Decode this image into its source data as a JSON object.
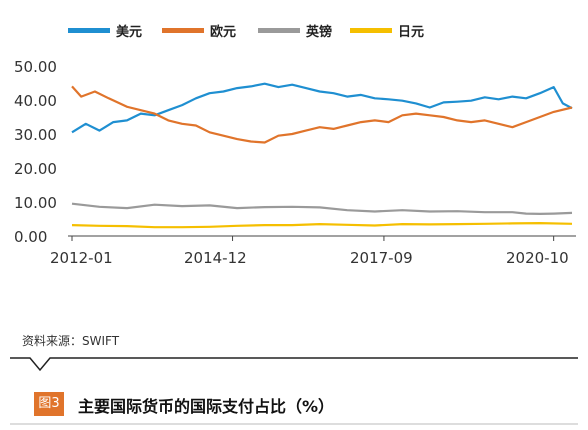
{
  "chart_data": {
    "type": "line",
    "title": "",
    "xlabel": "",
    "ylabel": "",
    "ylim": [
      0,
      50
    ],
    "yticks": [
      "0.00",
      "10.00",
      "20.00",
      "30.00",
      "40.00",
      "50.00"
    ],
    "xticks": [
      "2012-01",
      "2014-12",
      "2017-09",
      "2020-10"
    ],
    "x_range": [
      "2012-01",
      "2021-02"
    ],
    "legend_position": "top",
    "grid": false,
    "series": [
      {
        "name": "美元",
        "color": "#1f8fd1",
        "points": [
          [
            "2012-01",
            30.5
          ],
          [
            "2012-04",
            33
          ],
          [
            "2012-07",
            31
          ],
          [
            "2012-10",
            33.5
          ],
          [
            "2013-01",
            34
          ],
          [
            "2013-04",
            36
          ],
          [
            "2013-07",
            35.5
          ],
          [
            "2013-10",
            37
          ],
          [
            "2014-01",
            38.5
          ],
          [
            "2014-04",
            40.5
          ],
          [
            "2014-07",
            42
          ],
          [
            "2014-10",
            42.5
          ],
          [
            "2015-01",
            43.5
          ],
          [
            "2015-04",
            44
          ],
          [
            "2015-07",
            44.8
          ],
          [
            "2015-10",
            43.8
          ],
          [
            "2016-01",
            44.5
          ],
          [
            "2016-04",
            43.5
          ],
          [
            "2016-07",
            42.5
          ],
          [
            "2016-10",
            42
          ],
          [
            "2017-01",
            41
          ],
          [
            "2017-04",
            41.5
          ],
          [
            "2017-07",
            40.5
          ],
          [
            "2017-10",
            40.2
          ],
          [
            "2018-01",
            39.8
          ],
          [
            "2018-04",
            39
          ],
          [
            "2018-07",
            37.8
          ],
          [
            "2018-10",
            39.3
          ],
          [
            "2019-01",
            39.5
          ],
          [
            "2019-04",
            39.8
          ],
          [
            "2019-07",
            40.8
          ],
          [
            "2019-10",
            40.2
          ],
          [
            "2020-01",
            41
          ],
          [
            "2020-04",
            40.5
          ],
          [
            "2020-07",
            42
          ],
          [
            "2020-10",
            43.8
          ],
          [
            "2020-12",
            39
          ],
          [
            "2021-02",
            37.6
          ]
        ]
      },
      {
        "name": "欧元",
        "color": "#e0742b",
        "points": [
          [
            "2012-01",
            44
          ],
          [
            "2012-03",
            41
          ],
          [
            "2012-06",
            42.5
          ],
          [
            "2012-09",
            40.5
          ],
          [
            "2013-01",
            38
          ],
          [
            "2013-04",
            37
          ],
          [
            "2013-07",
            36
          ],
          [
            "2013-10",
            34
          ],
          [
            "2014-01",
            33
          ],
          [
            "2014-04",
            32.5
          ],
          [
            "2014-07",
            30.5
          ],
          [
            "2014-10",
            29.5
          ],
          [
            "2015-01",
            28.5
          ],
          [
            "2015-04",
            27.8
          ],
          [
            "2015-07",
            27.5
          ],
          [
            "2015-10",
            29.5
          ],
          [
            "2016-01",
            30
          ],
          [
            "2016-04",
            31
          ],
          [
            "2016-07",
            32
          ],
          [
            "2016-10",
            31.5
          ],
          [
            "2017-01",
            32.5
          ],
          [
            "2017-04",
            33.5
          ],
          [
            "2017-07",
            34
          ],
          [
            "2017-10",
            33.5
          ],
          [
            "2018-01",
            35.5
          ],
          [
            "2018-04",
            36
          ],
          [
            "2018-07",
            35.5
          ],
          [
            "2018-10",
            35
          ],
          [
            "2019-01",
            34
          ],
          [
            "2019-04",
            33.5
          ],
          [
            "2019-07",
            34
          ],
          [
            "2019-10",
            33
          ],
          [
            "2020-01",
            32
          ],
          [
            "2020-04",
            33.5
          ],
          [
            "2020-07",
            35
          ],
          [
            "2020-10",
            36.5
          ],
          [
            "2021-02",
            37.8
          ]
        ]
      },
      {
        "name": "英镑",
        "color": "#9a9a9a",
        "points": [
          [
            "2012-01",
            9.5
          ],
          [
            "2012-07",
            8.6
          ],
          [
            "2013-01",
            8.2
          ],
          [
            "2013-07",
            9.2
          ],
          [
            "2014-01",
            8.8
          ],
          [
            "2014-07",
            9.0
          ],
          [
            "2015-01",
            8.2
          ],
          [
            "2015-07",
            8.5
          ],
          [
            "2016-01",
            8.6
          ],
          [
            "2016-07",
            8.4
          ],
          [
            "2017-01",
            7.6
          ],
          [
            "2017-07",
            7.2
          ],
          [
            "2018-01",
            7.6
          ],
          [
            "2018-07",
            7.2
          ],
          [
            "2019-01",
            7.3
          ],
          [
            "2019-07",
            7.0
          ],
          [
            "2020-01",
            7.0
          ],
          [
            "2020-04",
            6.6
          ],
          [
            "2020-07",
            6.5
          ],
          [
            "2020-10",
            6.6
          ],
          [
            "2021-02",
            6.8
          ]
        ]
      },
      {
        "name": "日元",
        "color": "#f5bf00",
        "points": [
          [
            "2012-01",
            3.2
          ],
          [
            "2012-07",
            3.0
          ],
          [
            "2013-01",
            2.9
          ],
          [
            "2013-07",
            2.6
          ],
          [
            "2014-01",
            2.6
          ],
          [
            "2014-07",
            2.7
          ],
          [
            "2015-01",
            3.0
          ],
          [
            "2015-07",
            3.2
          ],
          [
            "2016-01",
            3.2
          ],
          [
            "2016-07",
            3.5
          ],
          [
            "2017-01",
            3.3
          ],
          [
            "2017-07",
            3.1
          ],
          [
            "2018-01",
            3.5
          ],
          [
            "2018-07",
            3.4
          ],
          [
            "2019-01",
            3.5
          ],
          [
            "2019-07",
            3.6
          ],
          [
            "2020-01",
            3.7
          ],
          [
            "2020-07",
            3.8
          ],
          [
            "2021-02",
            3.6
          ]
        ]
      }
    ]
  },
  "source_text": "资料来源：SWIFT",
  "caption": {
    "badge": "图3",
    "title": "主要国际货币的国际支付占比（%）"
  }
}
